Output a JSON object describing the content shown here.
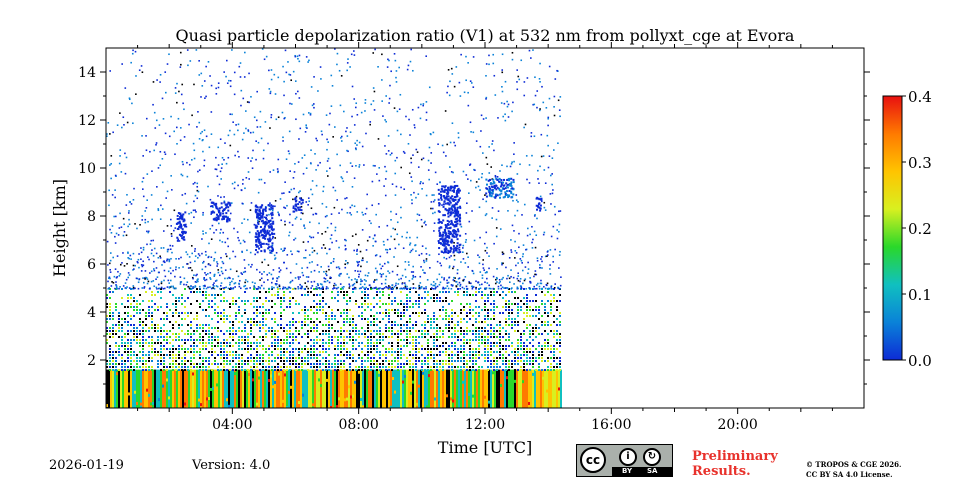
{
  "chart_data": {
    "type": "heatmap",
    "title": "Quasi particle depolarization ratio (V1) at 532 nm from pollyxt_cge at Evora",
    "xlabel": "Time [UTC]",
    "ylabel": "Height [km]",
    "xlim_hours": [
      0,
      24
    ],
    "ylim_km": [
      0,
      15
    ],
    "x_ticks": [
      {
        "hour": 4,
        "label": "04:00"
      },
      {
        "hour": 8,
        "label": "08:00"
      },
      {
        "hour": 12,
        "label": "12:00"
      },
      {
        "hour": 16,
        "label": "16:00"
      },
      {
        "hour": 20,
        "label": "20:00"
      }
    ],
    "y_ticks": [
      {
        "km": 2,
        "label": "2"
      },
      {
        "km": 4,
        "label": "4"
      },
      {
        "km": 6,
        "label": "6"
      },
      {
        "km": 8,
        "label": "8"
      },
      {
        "km": 10,
        "label": "10"
      },
      {
        "km": 12,
        "label": "12"
      },
      {
        "km": 14,
        "label": "14"
      }
    ],
    "colorbar": {
      "range": [
        0.0,
        0.4
      ],
      "ticks": [
        {
          "value": 0.0,
          "label": "0.0"
        },
        {
          "value": 0.1,
          "label": "0.1"
        },
        {
          "value": 0.2,
          "label": "0.2"
        },
        {
          "value": 0.3,
          "label": "0.3"
        },
        {
          "value": 0.4,
          "label": "0.4"
        }
      ],
      "colors": [
        "#0d2bd6",
        "#0a82d8",
        "#10c0c0",
        "#2ad82a",
        "#d8f020",
        "#ffc400",
        "#ff7a00",
        "#e81010"
      ]
    },
    "data_end_hour": 14.4,
    "layers": [
      {
        "name": "surface high-ratio layer",
        "from_km": 0.0,
        "to_km": 1.6,
        "value_range": [
          0.1,
          0.35
        ]
      },
      {
        "name": "boundary layer noise",
        "from_km": 1.6,
        "to_km": 5.0,
        "value_range": [
          0.0,
          0.25
        ]
      },
      {
        "name": "sparse noise aloft",
        "from_km": 5.0,
        "to_km": 15.0,
        "value_range": [
          0.0,
          0.1
        ]
      }
    ],
    "cloud_features": [
      {
        "hour_start": 2.2,
        "hour_end": 2.5,
        "km_bottom": 7.0,
        "km_top": 8.2,
        "value": 0.03
      },
      {
        "hour_start": 3.3,
        "hour_end": 3.9,
        "km_bottom": 7.8,
        "km_top": 8.6,
        "value": 0.03
      },
      {
        "hour_start": 4.7,
        "hour_end": 5.3,
        "km_bottom": 6.5,
        "km_top": 8.5,
        "value": 0.03
      },
      {
        "hour_start": 5.9,
        "hour_end": 6.2,
        "km_bottom": 8.2,
        "km_top": 8.8,
        "value": 0.04
      },
      {
        "hour_start": 10.5,
        "hour_end": 11.2,
        "km_bottom": 6.5,
        "km_top": 9.3,
        "value": 0.04
      },
      {
        "hour_start": 12.0,
        "hour_end": 12.9,
        "km_bottom": 8.8,
        "km_top": 9.6,
        "value": 0.05
      },
      {
        "hour_start": 13.6,
        "hour_end": 13.8,
        "km_bottom": 8.2,
        "km_top": 8.8,
        "value": 0.04
      }
    ]
  },
  "footer": {
    "date": "2026-01-19",
    "version": "Version: 4.0",
    "license_badge": {
      "cc": "cc",
      "by": "BY",
      "sa": "SA"
    },
    "preliminary_line1": "Preliminary",
    "preliminary_line2": "Results.",
    "copyright_line1": "© TROPOS & CGE 2026.",
    "copyright_line2": "CC BY SA 4.0 License."
  }
}
